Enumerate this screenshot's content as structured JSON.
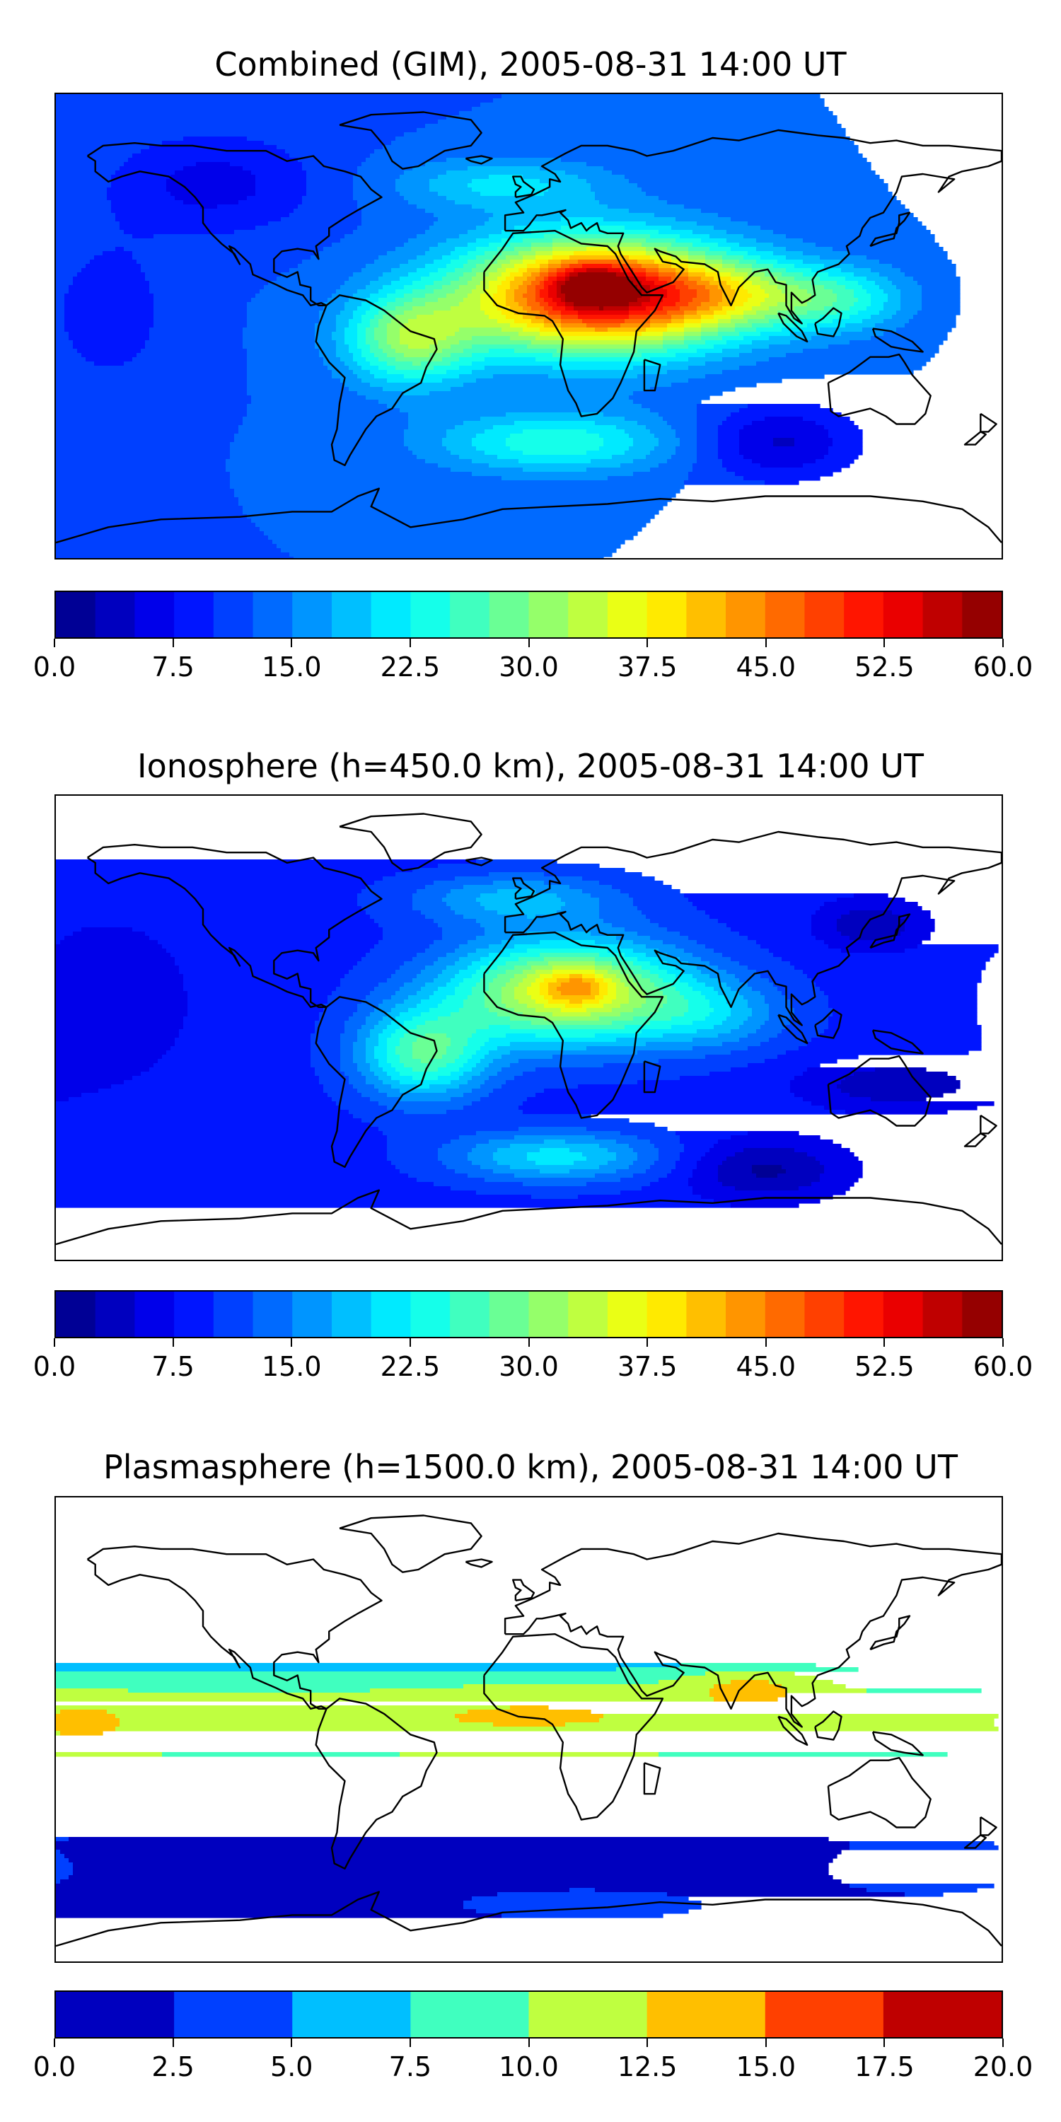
{
  "panels": [
    {
      "title": "Combined (GIM), 2005-08-31 14:00 UT",
      "colorbar": {
        "min": 0,
        "max": 60,
        "step": 2.5,
        "tick_labels": [
          "0.0",
          "7.5",
          "15.0",
          "22.5",
          "30.0",
          "37.5",
          "45.0",
          "52.5",
          "60.0"
        ]
      },
      "field": {
        "background_level": 12.5,
        "blobs": [
          {
            "lon": 25,
            "lat": 12,
            "amp": 42,
            "slon": 50,
            "slat": 22
          },
          {
            "lon": 25,
            "lat": 16,
            "amp": 12,
            "slon": 14,
            "slat": 8
          },
          {
            "lon": -45,
            "lat": -5,
            "amp": 18,
            "slon": 25,
            "slat": 18
          },
          {
            "lon": 80,
            "lat": 12,
            "amp": 14,
            "slon": 40,
            "slat": 14
          },
          {
            "lon": 120,
            "lat": 10,
            "amp": 8,
            "slon": 25,
            "slat": 12
          },
          {
            "lon": 10,
            "lat": -45,
            "amp": 12,
            "slon": 45,
            "slat": 12
          },
          {
            "lon": -10,
            "lat": 55,
            "amp": 8,
            "slon": 40,
            "slat": 10
          },
          {
            "lon": -120,
            "lat": 55,
            "amp": -6,
            "slon": 40,
            "slat": 20
          },
          {
            "lon": 95,
            "lat": -45,
            "amp": -8,
            "slon": 30,
            "slat": 15
          },
          {
            "lon": -160,
            "lat": 5,
            "amp": -4,
            "slon": 25,
            "slat": 30
          }
        ]
      }
    },
    {
      "title": "Ionosphere  (h=450.0 km), 2005-08-31 14:00 UT",
      "colorbar": {
        "min": 0,
        "max": 60,
        "step": 2.5,
        "tick_labels": [
          "0.0",
          "7.5",
          "15.0",
          "22.5",
          "30.0",
          "37.5",
          "45.0",
          "52.5",
          "60.0"
        ]
      },
      "field": {
        "background_level": 9,
        "blobs": [
          {
            "lon": 15,
            "lat": 14,
            "amp": 28,
            "slon": 45,
            "slat": 20
          },
          {
            "lon": 18,
            "lat": 16,
            "amp": 8,
            "slon": 12,
            "slat": 7
          },
          {
            "lon": -40,
            "lat": -10,
            "amp": 18,
            "slon": 25,
            "slat": 18
          },
          {
            "lon": 70,
            "lat": 5,
            "amp": 8,
            "slon": 30,
            "slat": 14
          },
          {
            "lon": 10,
            "lat": -50,
            "amp": 12,
            "slon": 40,
            "slat": 10
          },
          {
            "lon": -5,
            "lat": 50,
            "amp": 9,
            "slon": 40,
            "slat": 10
          },
          {
            "lon": 130,
            "lat": 40,
            "amp": -6,
            "slon": 20,
            "slat": 10
          },
          {
            "lon": 140,
            "lat": -22,
            "amp": -6,
            "slon": 35,
            "slat": 10
          },
          {
            "lon": 90,
            "lat": -55,
            "amp": -7,
            "slon": 30,
            "slat": 12
          },
          {
            "lon": -160,
            "lat": 10,
            "amp": -4,
            "slon": 30,
            "slat": 30
          }
        ]
      }
    },
    {
      "title": "Plasmasphere (h=1500.0 km), 2005-08-31 14:00 UT",
      "colorbar": {
        "min": 0,
        "max": 20,
        "step": 2.5,
        "tick_labels": [
          "0.0",
          "2.5",
          "5.0",
          "7.5",
          "10.0",
          "12.5",
          "15.0",
          "17.5",
          "20.0"
        ]
      },
      "field": {
        "background_level": 1.8,
        "band": {
          "lat": 2,
          "slat": 27,
          "amp": 9.8
        },
        "blobs": [
          {
            "lon": 85,
            "lat": 18,
            "amp": 4,
            "slon": 30,
            "slat": 8
          },
          {
            "lon": 0,
            "lat": 10,
            "amp": 1.5,
            "slon": 60,
            "slat": 12
          },
          {
            "lon": -170,
            "lat": 5,
            "amp": 1.5,
            "slon": 20,
            "slat": 15
          },
          {
            "lon": 150,
            "lat": -55,
            "amp": 2.5,
            "slon": 30,
            "slat": 8
          },
          {
            "lon": 20,
            "lat": -68,
            "amp": 2.5,
            "slon": 40,
            "slat": 5
          }
        ]
      }
    }
  ],
  "colormap": "jet"
}
